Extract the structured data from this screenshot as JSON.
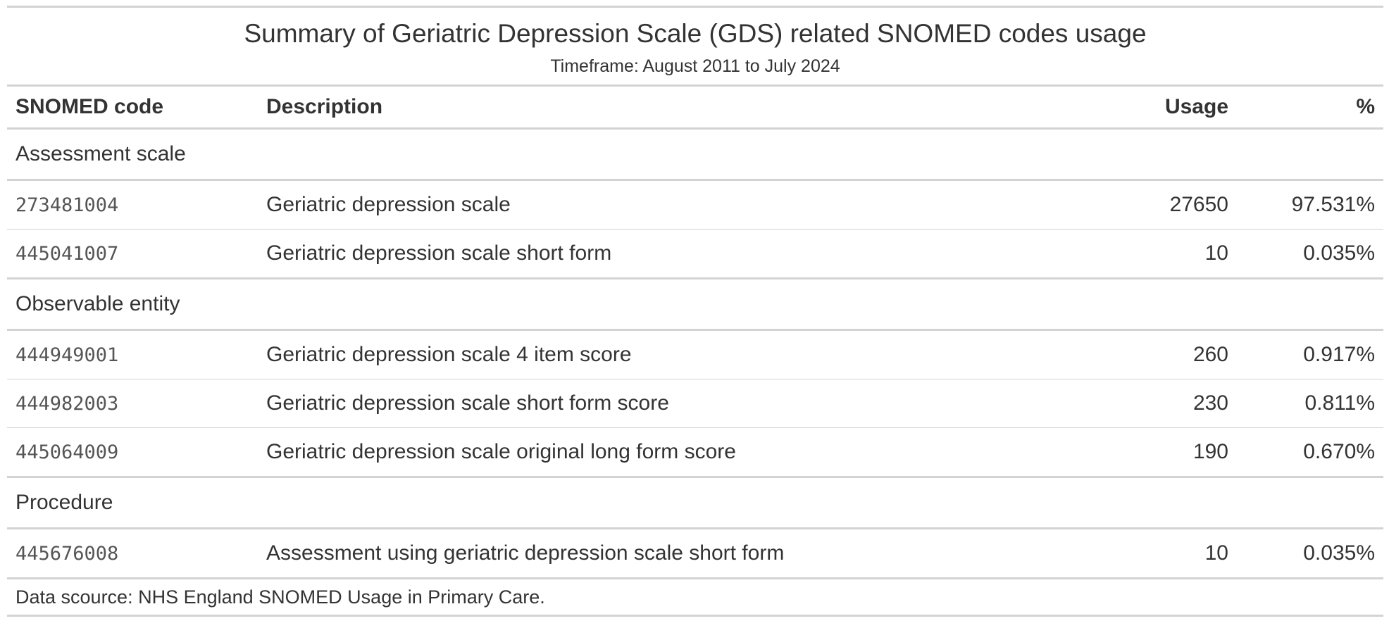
{
  "title": "Summary of Geriatric Depression Scale (GDS) related SNOMED codes usage",
  "subtitle": "Timeframe: August 2011 to July 2024",
  "columns": {
    "code": "SNOMED code",
    "description": "Description",
    "usage": "Usage",
    "percent": "%"
  },
  "groups": [
    {
      "name": "Assessment scale",
      "rows": [
        {
          "code": "273481004",
          "description": "Geriatric depression scale",
          "usage": "27650",
          "percent": "97.531%"
        },
        {
          "code": "445041007",
          "description": "Geriatric depression scale short form",
          "usage": "10",
          "percent": "0.035%"
        }
      ]
    },
    {
      "name": "Observable entity",
      "rows": [
        {
          "code": "444949001",
          "description": "Geriatric depression scale 4 item score",
          "usage": "260",
          "percent": "0.917%"
        },
        {
          "code": "444982003",
          "description": "Geriatric depression scale short form score",
          "usage": "230",
          "percent": "0.811%"
        },
        {
          "code": "445064009",
          "description": "Geriatric depression scale original long form score",
          "usage": "190",
          "percent": "0.670%"
        }
      ]
    },
    {
      "name": "Procedure",
      "rows": [
        {
          "code": "445676008",
          "description": "Assessment using geriatric depression scale short form",
          "usage": "10",
          "percent": "0.035%"
        }
      ]
    }
  ],
  "footnote": "Data scource: NHS England SNOMED Usage in Primary Care."
}
